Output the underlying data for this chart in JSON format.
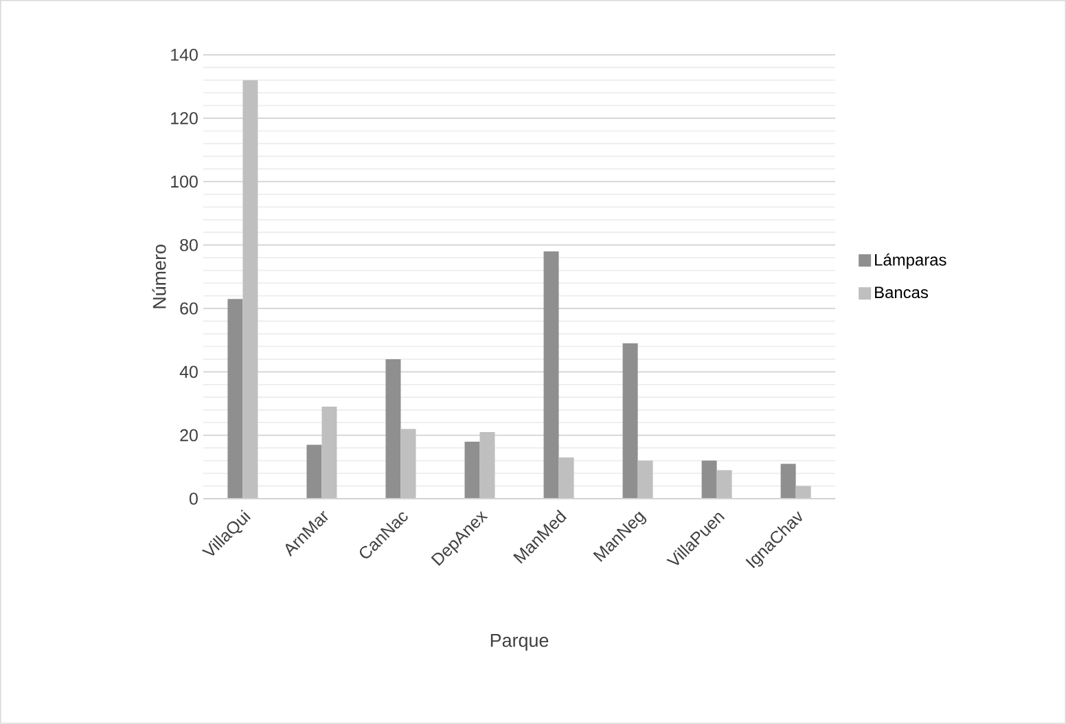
{
  "chart_data": {
    "type": "bar",
    "xlabel": "Parque",
    "ylabel": "Número",
    "categories": [
      "VillaQui",
      "ArnMar",
      "CanNac",
      "DepAnex",
      "ManMed",
      "ManNeg",
      "VillaPuen",
      "IgnaChav"
    ],
    "series": [
      {
        "name": "Lámparas",
        "color": "#8f8f8f",
        "values": [
          63,
          17,
          44,
          18,
          78,
          49,
          12,
          11
        ]
      },
      {
        "name": "Bancas",
        "color": "#bfbfbf",
        "values": [
          132,
          29,
          22,
          21,
          13,
          12,
          9,
          4
        ]
      }
    ],
    "ylim": [
      0,
      140
    ],
    "yticks": [
      0,
      20,
      40,
      60,
      80,
      100,
      120,
      140
    ],
    "grid": "y",
    "legend": "right"
  }
}
